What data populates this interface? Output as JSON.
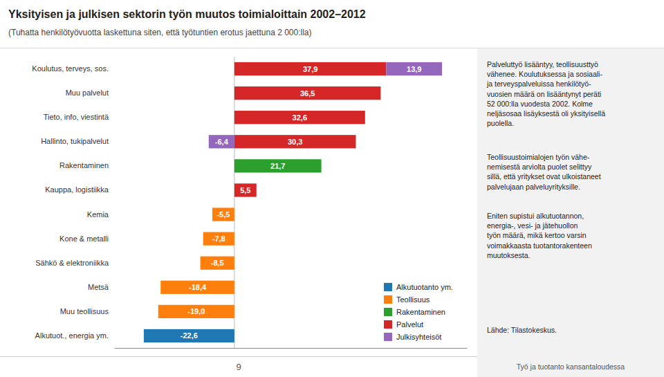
{
  "chart_data": {
    "type": "bar",
    "orientation": "horizontal",
    "stacked": true,
    "data_labels": true,
    "tick_labels": "y",
    "legend": "lower right",
    "title": "Yksityisen ja julkisen sektorin työn muutos toimialoittain 2002–2012",
    "subtitle": "(Tuhatta henkilötyövuotta laskettuna siten, että työtuntien erotus jaettuna 2 000:lla)",
    "categories": [
      "Koulutus, terveys, sos.",
      "Muu palvelut",
      "Tieto, info, viestintä",
      "Hallinto, tukipalvelut",
      "Rakentaminen",
      "Kauppa, logistiikka",
      "Kemia",
      "Kone & metalli",
      "Sähkö & elektroniikka",
      "Metsä",
      "Muu teollisuus",
      "Alkutuot., energia ym."
    ],
    "series": [
      {
        "name": "Alkutuotanto ym.",
        "values": [
          null,
          null,
          null,
          null,
          null,
          null,
          null,
          null,
          null,
          null,
          null,
          -22.6
        ],
        "value_labels": [
          null,
          null,
          null,
          null,
          null,
          null,
          null,
          null,
          null,
          null,
          null,
          "-22,6"
        ]
      },
      {
        "name": "Teollisuus",
        "values": [
          null,
          null,
          null,
          null,
          null,
          null,
          -5.5,
          -7.8,
          -8.5,
          -18.4,
          -19.0,
          null
        ],
        "value_labels": [
          null,
          null,
          null,
          null,
          null,
          null,
          "-5,5",
          "-7,8",
          "-8,5",
          "-18,4",
          "-19,0",
          null
        ]
      },
      {
        "name": "Rakentaminen",
        "values": [
          null,
          null,
          null,
          null,
          21.7,
          null,
          null,
          null,
          null,
          null,
          null,
          null
        ],
        "value_labels": [
          null,
          null,
          null,
          null,
          "21,7",
          null,
          null,
          null,
          null,
          null,
          null,
          null
        ]
      },
      {
        "name": "Palvelut",
        "values": [
          37.9,
          36.5,
          32.6,
          30.3,
          null,
          5.5,
          null,
          null,
          null,
          null,
          null,
          null
        ],
        "value_labels": [
          "37,9",
          "36,5",
          "32,6",
          "30,3",
          null,
          "5,5",
          null,
          null,
          null,
          null,
          null,
          null
        ]
      },
      {
        "name": "Julkisyhteisöt",
        "values": [
          13.9,
          null,
          null,
          -6.4,
          null,
          null,
          null,
          null,
          null,
          null,
          null,
          null
        ],
        "value_labels": [
          "13,9",
          null,
          null,
          "-6,4",
          null,
          null,
          null,
          null,
          null,
          null,
          null,
          null
        ]
      }
    ],
    "xlim": [
      -30,
      58
    ],
    "annotations": [
      "Palveluttyö lisääntyy, teollisuusttyö\nvähenee. Koulutuksessa ja sosiaali-\nja terveyspalveluissa henkilötyö-\nvuosien määrä on lisääntynyt peräti\n52 000:lla vuodesta 2002. Kolme\nneljäsosaa lisäyksestä oli yksityisellä\npuolella.",
      "Teollisuustoimialojen työn vähe-\nnemisestä arviolta puolet selittyy\nsillä, että yritykset ovat ulkoistaneet\npalvelujaan palveluyrityksille.",
      "Eniten supistui alkutuotannon,\nenergia-, vesi- ja jätehuollon\ntyön määrä, mikä kertoo varsin\nvoimakkaasta tuotantorakenteen\nmuutoksesta.",
      "Lähde: Tilastokeskus."
    ],
    "footer_left": "9",
    "footer_right": "Työ ja tuotanto kansantaloudessa"
  }
}
